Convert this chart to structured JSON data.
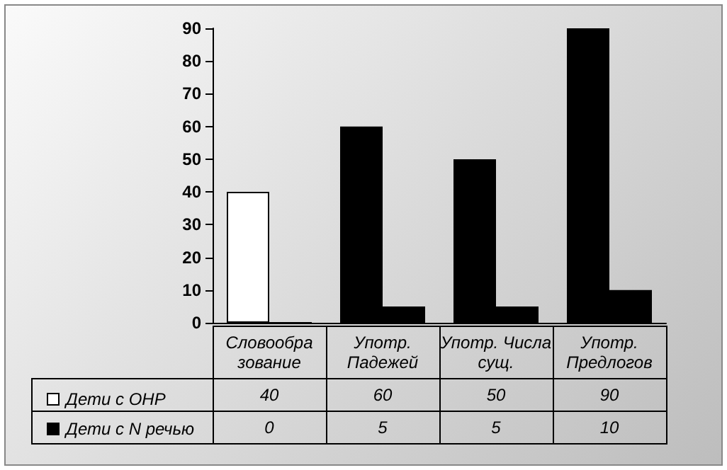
{
  "chart_data": {
    "type": "bar",
    "categories": [
      "Словообра зование",
      "Употр. Падежей",
      "Употр. Числа сущ.",
      "Употр. Предлогов"
    ],
    "series": [
      {
        "name": "Дети с ОНР",
        "color": "#ffffff",
        "colors": [
          "#ffffff",
          "#000000",
          "#000000",
          "#000000"
        ],
        "values": [
          40,
          60,
          50,
          90
        ]
      },
      {
        "name": "Дети с N речью",
        "color": "#000000",
        "values": [
          0,
          5,
          5,
          10
        ]
      }
    ],
    "ylim": [
      0,
      90
    ],
    "yticks": [
      0,
      10,
      20,
      30,
      40,
      50,
      60,
      70,
      80,
      90
    ],
    "grid": false,
    "legend": "bottom left",
    "data_labels": true
  }
}
